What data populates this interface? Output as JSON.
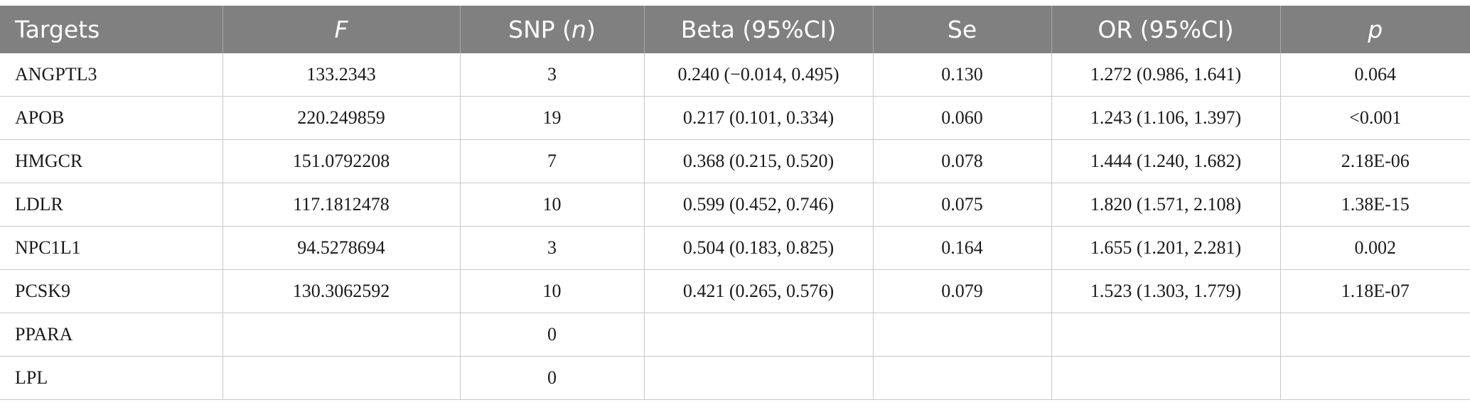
{
  "table": {
    "headers": {
      "targets": "Targets",
      "f": "F",
      "snp_prefix": "SNP (",
      "snp_n": "n",
      "snp_suffix": ")",
      "beta": "Beta (95%CI)",
      "se": "Se",
      "or": "OR (95%CI)",
      "p": "p"
    },
    "rows": [
      {
        "target": "ANGPTL3",
        "f": "133.2343",
        "snp": "3",
        "beta": "0.240 (−0.014, 0.495)",
        "se": "0.130",
        "or": "1.272 (0.986, 1.641)",
        "p": "0.064"
      },
      {
        "target": "APOB",
        "f": "220.249859",
        "snp": "19",
        "beta": "0.217 (0.101, 0.334)",
        "se": "0.060",
        "or": "1.243 (1.106, 1.397)",
        "p": "<0.001"
      },
      {
        "target": "HMGCR",
        "f": "151.0792208",
        "snp": "7",
        "beta": "0.368 (0.215, 0.520)",
        "se": "0.078",
        "or": "1.444 (1.240, 1.682)",
        "p": "2.18E-06"
      },
      {
        "target": "LDLR",
        "f": "117.1812478",
        "snp": "10",
        "beta": "0.599 (0.452, 0.746)",
        "se": "0.075",
        "or": "1.820 (1.571, 2.108)",
        "p": "1.38E-15"
      },
      {
        "target": "NPC1L1",
        "f": "94.5278694",
        "snp": "3",
        "beta": "0.504 (0.183, 0.825)",
        "se": "0.164",
        "or": "1.655 (1.201, 2.281)",
        "p": "0.002"
      },
      {
        "target": "PCSK9",
        "f": "130.3062592",
        "snp": "10",
        "beta": "0.421 (0.265, 0.576)",
        "se": "0.079",
        "or": "1.523 (1.303, 1.779)",
        "p": "1.18E-07"
      },
      {
        "target": "PPARA",
        "f": "",
        "snp": "0",
        "beta": "",
        "se": "",
        "or": "",
        "p": ""
      },
      {
        "target": "LPL",
        "f": "",
        "snp": "0",
        "beta": "",
        "se": "",
        "or": "",
        "p": ""
      }
    ]
  },
  "colors": {
    "header_bg": "#808080",
    "header_text": "#ffffff",
    "grid_line": "#c8c8c8"
  }
}
